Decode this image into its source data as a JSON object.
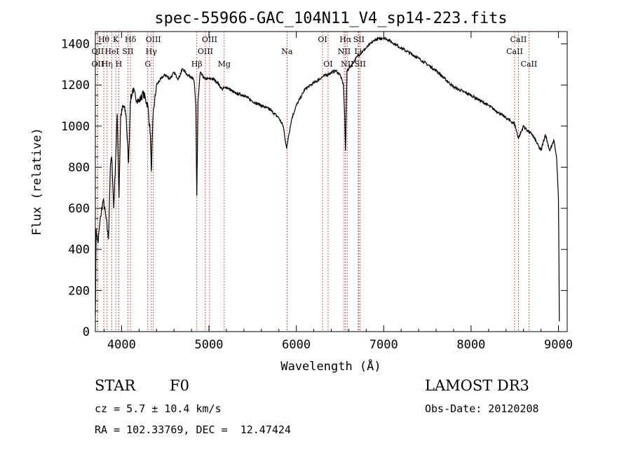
{
  "chart_data": {
    "type": "line",
    "title": "spec-55966-GAC_104N11_V4_sp14-223.fits",
    "xlabel": "Wavelength (Å)",
    "ylabel": "Flux (relative)",
    "xlim": [
      3700,
      9100
    ],
    "ylim": [
      0,
      1460
    ],
    "xticks": [
      4000,
      5000,
      6000,
      7000,
      8000,
      9000
    ],
    "yticks": [
      0,
      200,
      400,
      600,
      800,
      1000,
      1200,
      1400
    ],
    "series": [
      {
        "name": "spectrum",
        "x": [
          3700,
          3710,
          3730,
          3760,
          3790,
          3820,
          3850,
          3870,
          3880,
          3890,
          3910,
          3930,
          3950,
          3970,
          3990,
          4020,
          4050,
          4080,
          4100,
          4130,
          4160,
          4200,
          4250,
          4300,
          4330,
          4340,
          4360,
          4400,
          4450,
          4500,
          4550,
          4600,
          4650,
          4700,
          4750,
          4800,
          4830,
          4850,
          4861,
          4875,
          4900,
          4950,
          5000,
          5050,
          5100,
          5150,
          5200,
          5300,
          5400,
          5500,
          5600,
          5700,
          5800,
          5850,
          5890,
          5910,
          5950,
          6000,
          6050,
          6100,
          6200,
          6300,
          6400,
          6450,
          6500,
          6540,
          6555,
          6563,
          6570,
          6580,
          6620,
          6700,
          6800,
          6900,
          7000,
          7050,
          7200,
          7400,
          7600,
          7800,
          8000,
          8200,
          8400,
          8498,
          8542,
          8600,
          8662,
          8700,
          8800,
          8850,
          8900,
          8950,
          8980,
          9000,
          9010
        ],
        "y": [
          80,
          500,
          430,
          560,
          640,
          560,
          450,
          780,
          840,
          830,
          600,
          820,
          1060,
          650,
          1050,
          1100,
          1060,
          820,
          1120,
          1180,
          1140,
          1120,
          1160,
          1100,
          960,
          780,
          1050,
          1200,
          1230,
          1250,
          1230,
          1260,
          1230,
          1280,
          1250,
          1240,
          1220,
          1100,
          660,
          1120,
          1260,
          1230,
          1230,
          1230,
          1210,
          1180,
          1190,
          1160,
          1150,
          1120,
          1100,
          1080,
          1040,
          1000,
          890,
          950,
          1040,
          1100,
          1140,
          1180,
          1210,
          1240,
          1260,
          1270,
          1250,
          1200,
          1020,
          880,
          1050,
          1270,
          1290,
          1340,
          1380,
          1420,
          1430,
          1420,
          1380,
          1330,
          1270,
          1190,
          1150,
          1100,
          1040,
          1010,
          940,
          1000,
          970,
          960,
          880,
          960,
          880,
          930,
          840,
          650,
          50
        ]
      }
    ],
    "line_markers": [
      {
        "label": "Hθ",
        "wavelength": 3797,
        "row": 0
      },
      {
        "label": "OII",
        "wavelength": 3727,
        "row": 1
      },
      {
        "label": "OII",
        "wavelength": 3727,
        "row": 2
      },
      {
        "label": "Hη",
        "wavelength": 3835,
        "row": 2
      },
      {
        "label": "HeI",
        "wavelength": 3889,
        "row": 1
      },
      {
        "label": "K",
        "wavelength": 3934,
        "row": 0
      },
      {
        "label": "H",
        "wavelength": 3968,
        "row": 2
      },
      {
        "label": "SII",
        "wavelength": 4072,
        "row": 1
      },
      {
        "label": "Hδ",
        "wavelength": 4102,
        "row": 0
      },
      {
        "label": "OIII",
        "wavelength": 4363,
        "row": 0
      },
      {
        "label": "Hγ",
        "wavelength": 4340,
        "row": 1
      },
      {
        "label": "G",
        "wavelength": 4300,
        "row": 2
      },
      {
        "label": "Hβ",
        "wavelength": 4861,
        "row": 2
      },
      {
        "label": "OIII",
        "wavelength": 5007,
        "row": 0
      },
      {
        "label": "OIII",
        "wavelength": 4959,
        "row": 1
      },
      {
        "label": "Mg",
        "wavelength": 5175,
        "row": 2
      },
      {
        "label": "Na",
        "wavelength": 5893,
        "row": 1
      },
      {
        "label": "OI",
        "wavelength": 6300,
        "row": 0
      },
      {
        "label": "OI",
        "wavelength": 6363,
        "row": 2
      },
      {
        "label": "Hα",
        "wavelength": 6563,
        "row": 0
      },
      {
        "label": "SII",
        "wavelength": 6716,
        "row": 0
      },
      {
        "label": "NII",
        "wavelength": 6548,
        "row": 1
      },
      {
        "label": "Li",
        "wavelength": 6708,
        "row": 1
      },
      {
        "label": "NII",
        "wavelength": 6583,
        "row": 2
      },
      {
        "label": "SII",
        "wavelength": 6731,
        "row": 2
      },
      {
        "label": "CaII",
        "wavelength": 8542,
        "row": 0
      },
      {
        "label": "CaII",
        "wavelength": 8498,
        "row": 1
      },
      {
        "label": "CaII",
        "wavelength": 8662,
        "row": 2
      }
    ]
  },
  "info": {
    "class_label": "STAR",
    "subclass_label": "F0",
    "survey": "LAMOST DR3",
    "cz": "cz = 5.7 ± 10.4 km/s",
    "obs_date": "Obs-Date: 20120208",
    "coords": "RA = 102.33769, DEC =  12.47424"
  },
  "colors": {
    "marker_line": "#c0392b",
    "spectrum": "#000000"
  }
}
